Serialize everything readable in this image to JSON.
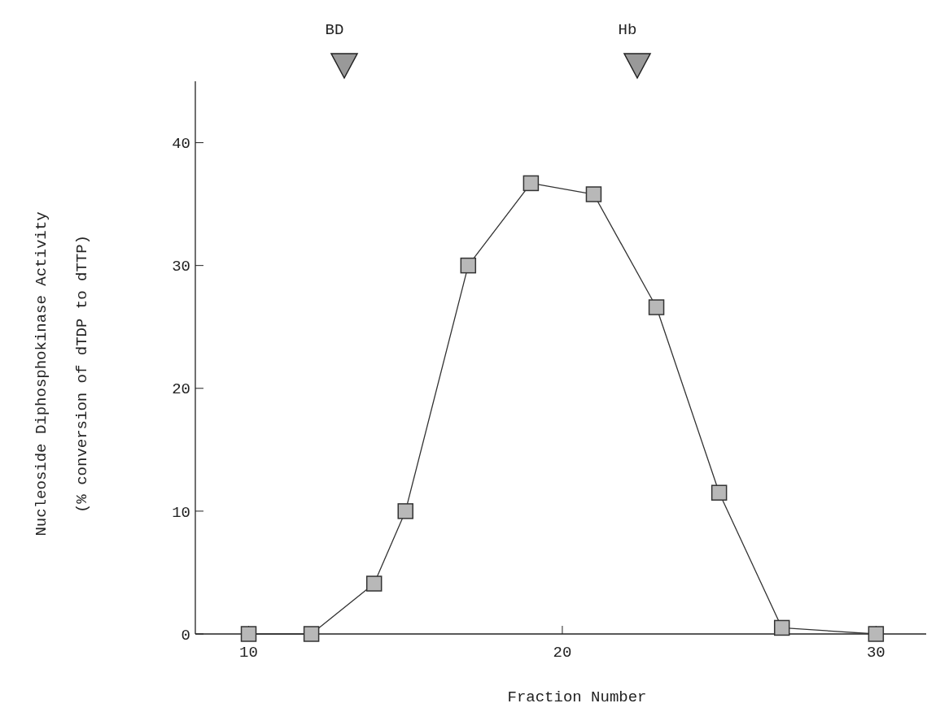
{
  "chart_data": {
    "type": "line",
    "xlabel": "Fraction Number",
    "ylabel": "Nucleoside Diphosphokinase Activity\n(% conversion of dTDP to dTTP)",
    "x": [
      10,
      12,
      14,
      15,
      17,
      19,
      21,
      23,
      25,
      27,
      30
    ],
    "series": [
      {
        "color": "#333333",
        "values": [
          0,
          0,
          4.1,
          10,
          30,
          36.7,
          35.8,
          26.6,
          11.5,
          0.5,
          0
        ]
      }
    ],
    "xlim": [
      8.3,
      31.6
    ],
    "ylim": [
      0,
      45
    ],
    "xticks": [
      10,
      20,
      30
    ],
    "yticks": [
      0,
      10,
      20,
      30,
      40
    ],
    "annotations": [
      "BD",
      "Hb"
    ],
    "marker": "square",
    "grid": false,
    "line_style": "solid"
  }
}
